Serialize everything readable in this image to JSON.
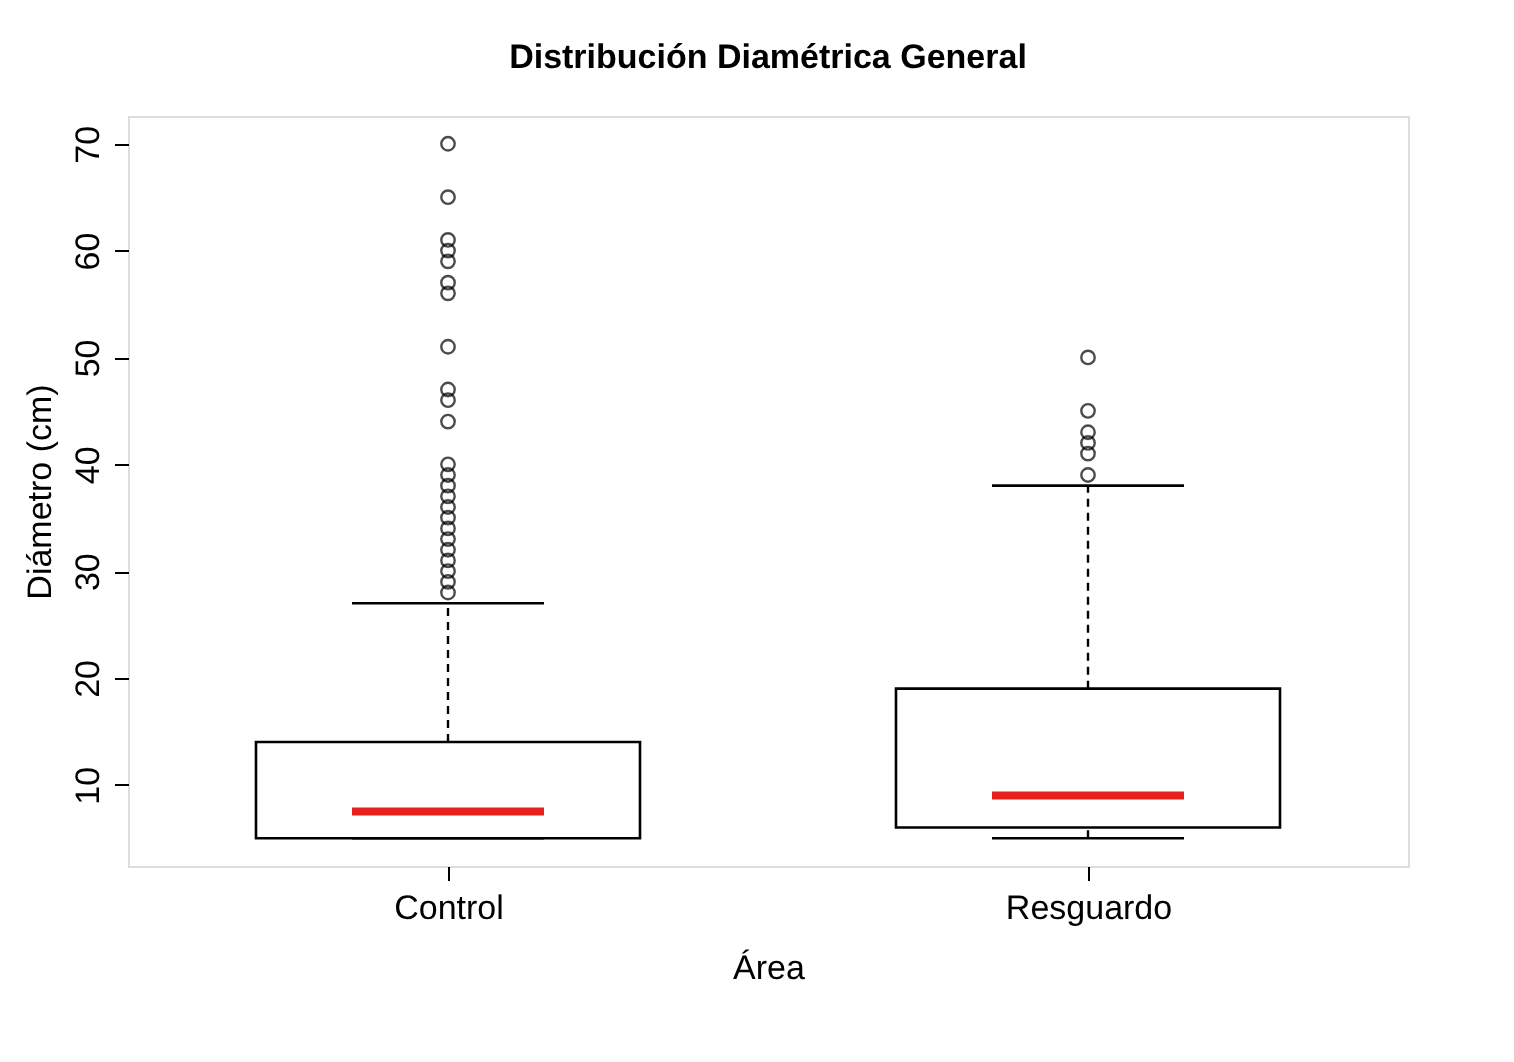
{
  "chart_data": {
    "type": "box",
    "title": "Distribución Diamétrica General",
    "xlabel": "Área",
    "ylabel": "Diámetro (cm)",
    "categories": [
      "Control",
      "Resguardo"
    ],
    "boxes": [
      {
        "low": 5,
        "q1": 5,
        "median": 7.5,
        "q3": 14,
        "high": 27,
        "outliers": [
          28,
          29,
          30,
          31,
          32,
          33,
          34,
          35,
          36,
          37,
          38,
          39,
          40,
          44,
          46,
          47,
          51,
          56,
          57,
          59,
          60,
          61,
          65,
          70
        ]
      },
      {
        "low": 5,
        "q1": 6,
        "median": 9,
        "q3": 19,
        "high": 38,
        "outliers": [
          39,
          41,
          42,
          43,
          45,
          50
        ]
      }
    ],
    "ylim": [
      2.4,
      72.6
    ],
    "yticks": [
      10,
      20,
      30,
      40,
      50,
      60,
      70
    ],
    "grid": false
  }
}
